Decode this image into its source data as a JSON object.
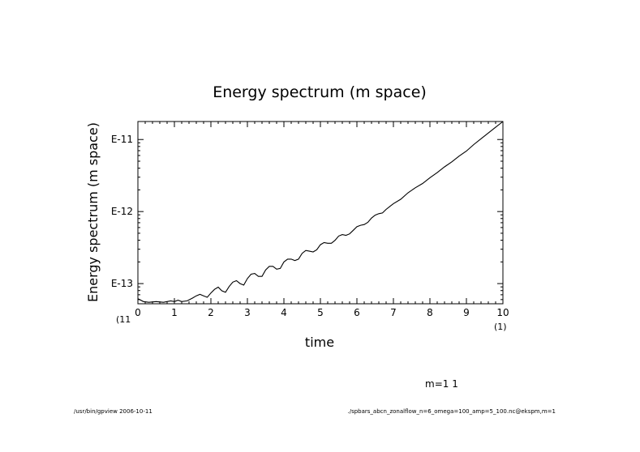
{
  "chart_data": {
    "type": "line",
    "title": "Energy spectrum (m space)",
    "xlabel": "time",
    "ylabel": "Energy spectrum (m space)",
    "xlim": [
      0,
      10
    ],
    "ylim": [
      -13.28,
      -10.75
    ],
    "y_scale": "log",
    "grid": false,
    "x_ticks": [
      0,
      1,
      2,
      3,
      4,
      5,
      6,
      7,
      8,
      9,
      10
    ],
    "x_tick_labels": [
      "0",
      "1",
      "2",
      "3",
      "4",
      "5",
      "6",
      "7",
      "8",
      "9",
      "10"
    ],
    "y_ticks": [
      -13,
      -12,
      -11
    ],
    "y_tick_labels": [
      "E-13",
      "E-12",
      "E-11"
    ],
    "x_scale_left": "(11",
    "x_scale_right": "(1)",
    "legend": "m=1 1",
    "series": [
      {
        "x": [
          0,
          0.15,
          0.3,
          0.5,
          0.7,
          0.9,
          1.0,
          1.1,
          1.2,
          1.35,
          1.5,
          1.6,
          1.7,
          1.8,
          1.9,
          2.0,
          2.1,
          2.2,
          2.3,
          2.4,
          2.5,
          2.6,
          2.7,
          2.8,
          2.9,
          3.0,
          3.1,
          3.2,
          3.3,
          3.4,
          3.5,
          3.6,
          3.7,
          3.8,
          3.9,
          4.0,
          4.1,
          4.2,
          4.3,
          4.4,
          4.5,
          4.6,
          4.7,
          4.8,
          4.9,
          5.0,
          5.1,
          5.2,
          5.3,
          5.4,
          5.5,
          5.6,
          5.7,
          5.8,
          5.9,
          6.0,
          6.1,
          6.2,
          6.3,
          6.4,
          6.5,
          6.6,
          6.7,
          6.8,
          6.9,
          7.0,
          7.2,
          7.4,
          7.6,
          7.8,
          8.0,
          8.2,
          8.4,
          8.6,
          8.8,
          9.0,
          9.2,
          9.4,
          9.6,
          9.8,
          10.0
        ],
        "y": [
          -13.21,
          -13.25,
          -13.26,
          -13.25,
          -13.26,
          -13.24,
          -13.25,
          -13.23,
          -13.25,
          -13.24,
          -13.2,
          -13.17,
          -13.15,
          -13.17,
          -13.19,
          -13.13,
          -13.08,
          -13.05,
          -13.1,
          -13.12,
          -13.04,
          -12.98,
          -12.96,
          -13.0,
          -13.02,
          -12.93,
          -12.87,
          -12.86,
          -12.9,
          -12.9,
          -12.81,
          -12.76,
          -12.76,
          -12.8,
          -12.79,
          -12.7,
          -12.66,
          -12.66,
          -12.68,
          -12.66,
          -12.58,
          -12.54,
          -12.55,
          -12.56,
          -12.53,
          -12.46,
          -12.43,
          -12.44,
          -12.44,
          -12.4,
          -12.34,
          -12.32,
          -12.33,
          -12.31,
          -12.26,
          -12.21,
          -12.19,
          -12.18,
          -12.15,
          -12.09,
          -12.05,
          -12.03,
          -12.02,
          -11.97,
          -11.93,
          -11.89,
          -11.83,
          -11.74,
          -11.67,
          -11.61,
          -11.53,
          -11.46,
          -11.38,
          -11.31,
          -11.23,
          -11.16,
          -11.07,
          -10.99,
          -10.91,
          -10.83,
          -10.75
        ]
      }
    ]
  },
  "footer": {
    "left": "/usr/bin/gpview  2006-10-11",
    "right": "./spbars_abcn_zonalflow_n=6_omega=100_amp=5_100.nc@ekspm,m=1"
  }
}
